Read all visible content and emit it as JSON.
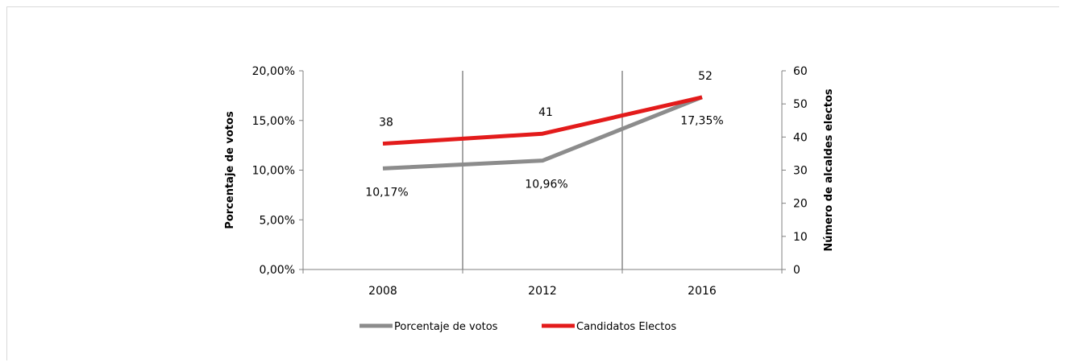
{
  "chart_data": {
    "type": "line",
    "categories": [
      "2008",
      "2012",
      "2016"
    ],
    "y_left": {
      "label": "Porcentaje de votos",
      "ticks": [
        "0,00%",
        "5,00%",
        "10,00%",
        "15,00%",
        "20,00%"
      ],
      "ylim": [
        0,
        20
      ]
    },
    "y_right": {
      "label": "Número de alcaldes electos",
      "ticks": [
        "0",
        "10",
        "20",
        "30",
        "40",
        "50",
        "60"
      ],
      "ylim": [
        0,
        60
      ]
    },
    "series": [
      {
        "name": "Porcentaje de votos",
        "axis": "left",
        "color": "#8c8c8c",
        "values": [
          10.17,
          10.96,
          17.35
        ],
        "labels": [
          "10,17%",
          "10,96%",
          "17,35%"
        ]
      },
      {
        "name": "Candidatos Electos",
        "axis": "right",
        "color": "#e31b1b",
        "values": [
          38,
          41,
          52
        ],
        "labels": [
          "38",
          "41",
          "52"
        ]
      }
    ],
    "grid": "vertical-between-categories",
    "legend": "bottom"
  }
}
